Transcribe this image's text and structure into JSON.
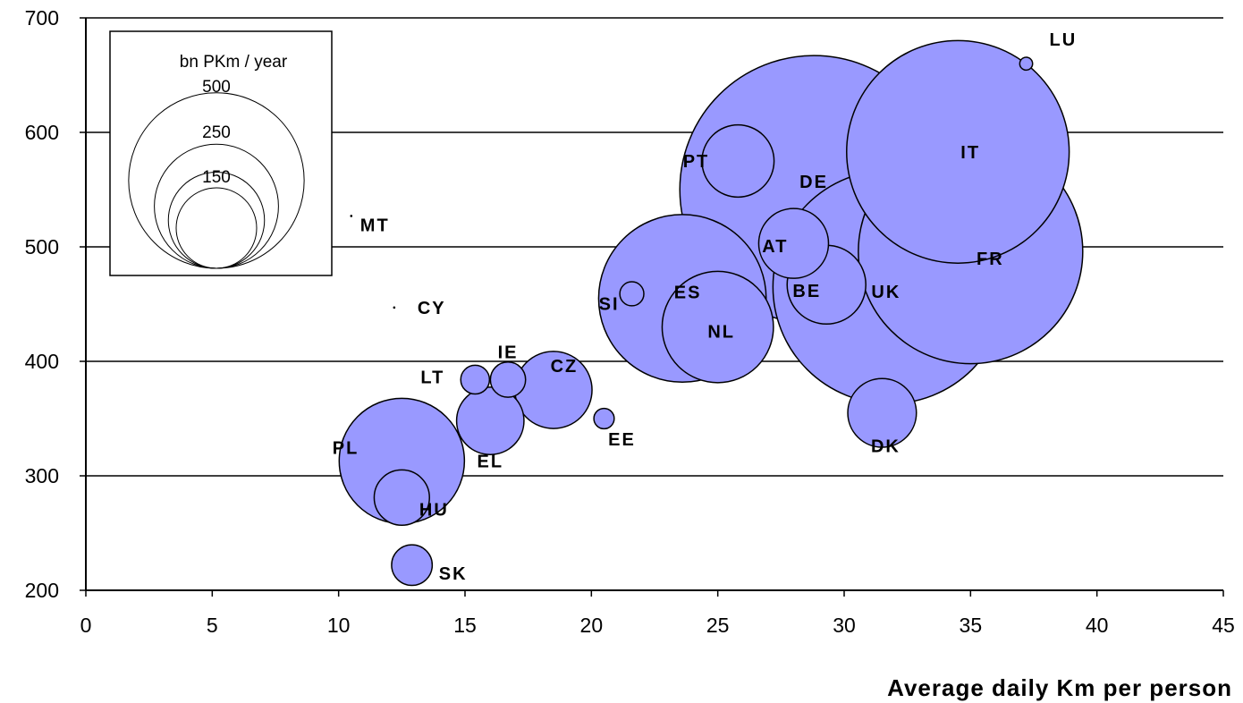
{
  "chart_data": {
    "type": "bubble",
    "title": "",
    "xlabel": "Average daily Km per person",
    "ylabel": "",
    "xlim": [
      0,
      45
    ],
    "ylim": [
      200,
      700
    ],
    "x_ticks": [
      0,
      5,
      10,
      15,
      20,
      25,
      30,
      35,
      40,
      45
    ],
    "y_ticks": [
      200,
      300,
      400,
      500,
      600,
      700
    ],
    "grid": "horizontal",
    "bubble_color": "#9999ff",
    "size_unit": "bn PKm / year",
    "size_legend": {
      "title": "bn PKm / year",
      "sizes": [
        {
          "label": "500",
          "value": 500
        },
        {
          "label": "250",
          "value": 250
        },
        {
          "label": "150",
          "value": 150
        }
      ]
    },
    "points": [
      {
        "label": "LU",
        "x": 37.2,
        "y": 660,
        "size": 2
      },
      {
        "label": "MT",
        "x": 10.5,
        "y": 527,
        "size": 0.1
      },
      {
        "label": "CY",
        "x": 12.2,
        "y": 447,
        "size": 0.1
      },
      {
        "label": "PT",
        "x": 25.8,
        "y": 575,
        "size": 63
      },
      {
        "label": "DE",
        "x": 28.8,
        "y": 550,
        "size": 870
      },
      {
        "label": "IT",
        "x": 34.5,
        "y": 583,
        "size": 600
      },
      {
        "label": "FR",
        "x": 35.0,
        "y": 496,
        "size": 610
      },
      {
        "label": "AT",
        "x": 28.0,
        "y": 503,
        "size": 59
      },
      {
        "label": "BE",
        "x": 29.3,
        "y": 467,
        "size": 75
      },
      {
        "label": "UK",
        "x": 31.8,
        "y": 465,
        "size": 660
      },
      {
        "label": "SI",
        "x": 21.6,
        "y": 459,
        "size": 7
      },
      {
        "label": "ES",
        "x": 23.6,
        "y": 455,
        "size": 340
      },
      {
        "label": "NL",
        "x": 25.0,
        "y": 430,
        "size": 150
      },
      {
        "label": "IE",
        "x": 16.7,
        "y": 384,
        "size": 15
      },
      {
        "label": "LT",
        "x": 15.4,
        "y": 384,
        "size": 10
      },
      {
        "label": "CZ",
        "x": 18.5,
        "y": 375,
        "size": 72
      },
      {
        "label": "EL",
        "x": 16.0,
        "y": 348,
        "size": 55
      },
      {
        "label": "EE",
        "x": 20.5,
        "y": 350,
        "size": 5
      },
      {
        "label": "DK",
        "x": 31.5,
        "y": 355,
        "size": 57
      },
      {
        "label": "PL",
        "x": 12.5,
        "y": 313,
        "size": 190
      },
      {
        "label": "HU",
        "x": 12.5,
        "y": 281,
        "size": 37
      },
      {
        "label": "SK",
        "x": 12.9,
        "y": 222,
        "size": 20
      }
    ]
  }
}
